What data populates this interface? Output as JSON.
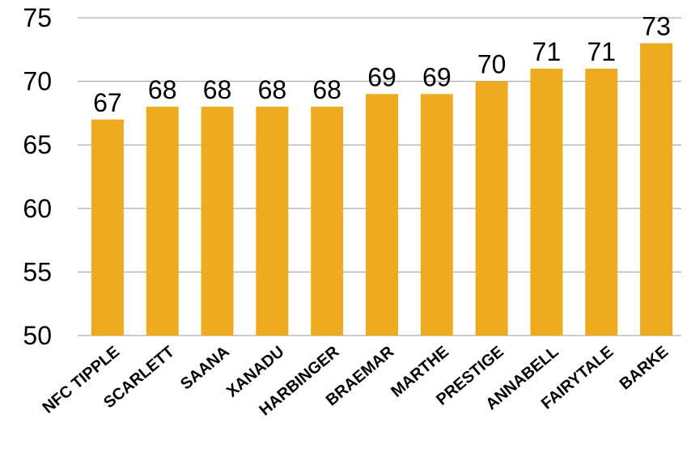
{
  "chart_data": {
    "type": "bar",
    "categories": [
      "NFC TIPPLE",
      "SCARLETT",
      "SAANA",
      "XANADU",
      "HARBINGER",
      "BRAEMAR",
      "MARTHE",
      "PRESTIGE",
      "ANNABELL",
      "FAIRYTALE",
      "BARKE"
    ],
    "values": [
      67,
      68,
      68,
      68,
      68,
      69,
      69,
      70,
      71,
      71,
      73
    ],
    "title": "",
    "xlabel": "",
    "ylabel": "",
    "ylim": [
      50,
      75
    ],
    "yticks": [
      50,
      55,
      60,
      65,
      70,
      75
    ],
    "grid": true,
    "data_labels": true,
    "bar_color": "#efab1f"
  }
}
